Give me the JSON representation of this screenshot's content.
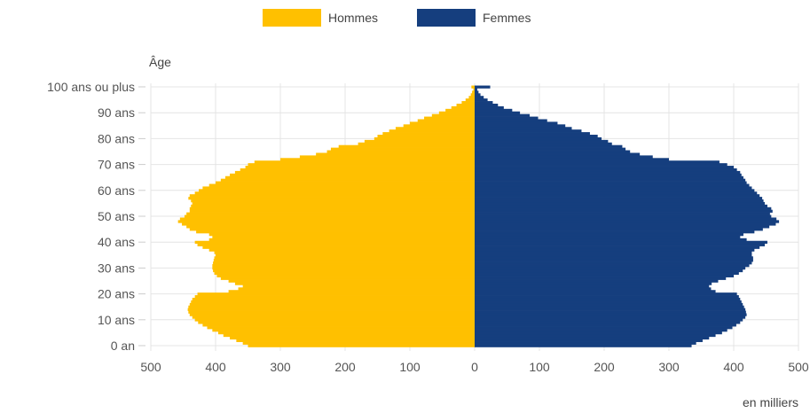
{
  "chart_data": {
    "type": "bar",
    "orientation": "horizontal-pyramid",
    "title": "",
    "ylabel": "Âge",
    "xlabel": "en milliers",
    "xlim": [
      -500,
      500
    ],
    "x_ticks": [
      -500,
      -400,
      -300,
      -200,
      -100,
      0,
      100,
      200,
      300,
      400,
      500
    ],
    "x_tick_labels": [
      "500",
      "400",
      "300",
      "200",
      "100",
      "0",
      "100",
      "200",
      "300",
      "400",
      "500"
    ],
    "y_ticks": [
      0,
      10,
      20,
      30,
      40,
      50,
      60,
      70,
      80,
      90,
      100
    ],
    "y_tick_labels": [
      "0 an",
      "10 ans",
      "20 ans",
      "30 ans",
      "40 ans",
      "50 ans",
      "60 ans",
      "70 ans",
      "80 ans",
      "90 ans",
      "100 ans ou plus"
    ],
    "legend_position": "top-center",
    "grid": true,
    "colors": {
      "Hommes": "#FFC000",
      "Femmes": "#153E7E"
    },
    "series": [
      {
        "name": "Hommes",
        "side": "left",
        "ages": [
          0,
          1,
          2,
          3,
          4,
          5,
          6,
          7,
          8,
          9,
          10,
          11,
          12,
          13,
          14,
          15,
          16,
          17,
          18,
          19,
          20,
          21,
          22,
          23,
          24,
          25,
          26,
          27,
          28,
          29,
          30,
          31,
          32,
          33,
          34,
          35,
          36,
          37,
          38,
          39,
          40,
          41,
          42,
          43,
          44,
          45,
          46,
          47,
          48,
          49,
          50,
          51,
          52,
          53,
          54,
          55,
          56,
          57,
          58,
          59,
          60,
          61,
          62,
          63,
          64,
          65,
          66,
          67,
          68,
          69,
          70,
          71,
          72,
          73,
          74,
          75,
          76,
          77,
          78,
          79,
          80,
          81,
          82,
          83,
          84,
          85,
          86,
          87,
          88,
          89,
          90,
          91,
          92,
          93,
          94,
          95,
          96,
          97,
          98,
          99,
          100
        ],
        "values": [
          350,
          358,
          368,
          378,
          388,
          396,
          405,
          413,
          420,
          427,
          432,
          436,
          440,
          442,
          443,
          442,
          440,
          438,
          436,
          432,
          428,
          380,
          365,
          358,
          370,
          380,
          392,
          398,
          402,
          404,
          405,
          405,
          404,
          403,
          402,
          400,
          402,
          410,
          420,
          428,
          432,
          410,
          405,
          410,
          430,
          440,
          445,
          452,
          458,
          455,
          448,
          445,
          440,
          440,
          438,
          436,
          438,
          442,
          440,
          432,
          426,
          420,
          410,
          400,
          392,
          385,
          378,
          370,
          362,
          354,
          350,
          340,
          300,
          270,
          245,
          228,
          222,
          210,
          180,
          170,
          155,
          150,
          142,
          132,
          122,
          110,
          100,
          88,
          78,
          66,
          55,
          45,
          36,
          28,
          20,
          14,
          9,
          6,
          4,
          2,
          5
        ]
      },
      {
        "name": "Femmes",
        "side": "right",
        "ages": [
          0,
          1,
          2,
          3,
          4,
          5,
          6,
          7,
          8,
          9,
          10,
          11,
          12,
          13,
          14,
          15,
          16,
          17,
          18,
          19,
          20,
          21,
          22,
          23,
          24,
          25,
          26,
          27,
          28,
          29,
          30,
          31,
          32,
          33,
          34,
          35,
          36,
          37,
          38,
          39,
          40,
          41,
          42,
          43,
          44,
          45,
          46,
          47,
          48,
          49,
          50,
          51,
          52,
          53,
          54,
          55,
          56,
          57,
          58,
          59,
          60,
          61,
          62,
          63,
          64,
          65,
          66,
          67,
          68,
          69,
          70,
          71,
          72,
          73,
          74,
          75,
          76,
          77,
          78,
          79,
          80,
          81,
          82,
          83,
          84,
          85,
          86,
          87,
          88,
          89,
          90,
          91,
          92,
          93,
          94,
          95,
          96,
          97,
          98,
          99,
          100
        ],
        "values": [
          335,
          342,
          352,
          362,
          372,
          382,
          390,
          398,
          404,
          410,
          414,
          418,
          420,
          419,
          418,
          416,
          414,
          412,
          410,
          408,
          405,
          372,
          365,
          362,
          366,
          376,
          388,
          400,
          408,
          414,
          418,
          424,
          428,
          430,
          430,
          428,
          428,
          432,
          440,
          448,
          452,
          420,
          410,
          415,
          432,
          445,
          455,
          465,
          470,
          466,
          458,
          456,
          460,
          458,
          452,
          448,
          446,
          444,
          440,
          436,
          432,
          428,
          424,
          420,
          418,
          415,
          412,
          410,
          405,
          400,
          390,
          378,
          300,
          275,
          255,
          240,
          233,
          228,
          212,
          206,
          196,
          190,
          178,
          165,
          150,
          140,
          128,
          112,
          98,
          85,
          70,
          58,
          45,
          36,
          28,
          20,
          14,
          9,
          6,
          4,
          24
        ]
      }
    ]
  }
}
